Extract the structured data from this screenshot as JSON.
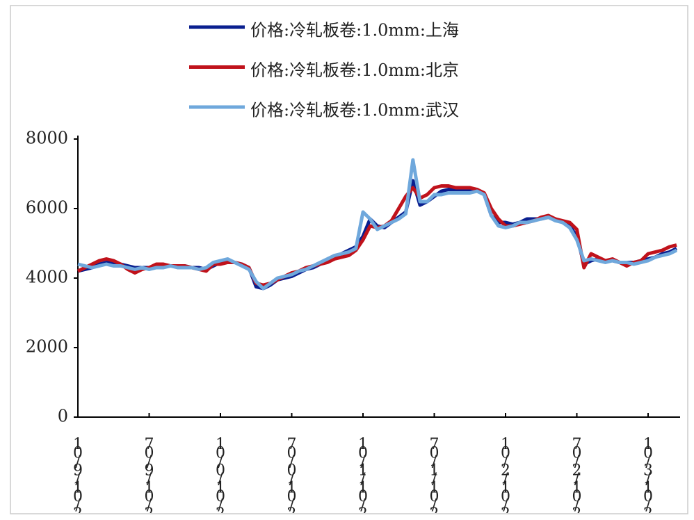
{
  "chart_data": {
    "type": "line",
    "categories": [
      "10/9/10/2",
      null,
      null,
      null,
      null,
      null,
      null,
      null,
      null,
      null,
      "70/9/10/2",
      null,
      null,
      null,
      null,
      null,
      null,
      null,
      null,
      null,
      "10/0/10/2",
      null,
      null,
      null,
      null,
      null,
      null,
      null,
      null,
      null,
      "70/0/10/2",
      null,
      null,
      null,
      null,
      null,
      null,
      null,
      null,
      null,
      "10/1/10/2",
      null,
      null,
      null,
      null,
      null,
      null,
      null,
      null,
      null,
      "70/1/10/2",
      null,
      null,
      null,
      null,
      null,
      null,
      null,
      null,
      null,
      "10/2/10/2",
      null,
      null,
      null,
      null,
      null,
      null,
      null,
      null,
      null,
      "70/2/10/2",
      null,
      null,
      null,
      null,
      null,
      null,
      null,
      null,
      null,
      "10/3/10/2",
      null,
      null,
      null,
      null
    ],
    "series": [
      {
        "name": "价格:冷轧板卷:1.0mm:上海",
        "color": "#0a1f8f",
        "values": [
          4200,
          4250,
          4300,
          4400,
          4450,
          4450,
          4400,
          4350,
          4300,
          4300,
          4300,
          4350,
          4350,
          4350,
          4350,
          4350,
          4300,
          4300,
          4250,
          4350,
          4450,
          4500,
          4450,
          4400,
          4300,
          3750,
          3700,
          3800,
          3950,
          4000,
          4050,
          4150,
          4250,
          4300,
          4400,
          4500,
          4600,
          4700,
          4800,
          4900,
          5200,
          5700,
          5500,
          5450,
          5600,
          5750,
          5900,
          6800,
          6100,
          6200,
          6350,
          6500,
          6550,
          6550,
          6500,
          6500,
          6550,
          6400,
          5800,
          5600,
          5600,
          5550,
          5600,
          5700,
          5700,
          5700,
          5750,
          5700,
          5600,
          5500,
          5200,
          4400,
          4500,
          4550,
          4500,
          4500,
          4450,
          4450,
          4450,
          4500,
          4550,
          4600,
          4700,
          4750,
          4850
        ]
      },
      {
        "name": "价格:冷轧板卷:1.0mm:北京",
        "color": "#c0121b",
        "values": [
          4200,
          4300,
          4400,
          4500,
          4550,
          4500,
          4400,
          4250,
          4150,
          4250,
          4300,
          4400,
          4400,
          4350,
          4350,
          4350,
          4300,
          4250,
          4200,
          4400,
          4400,
          4450,
          4450,
          4400,
          4300,
          3850,
          3800,
          3850,
          3950,
          4050,
          4150,
          4200,
          4300,
          4350,
          4400,
          4450,
          4550,
          4600,
          4650,
          4800,
          5100,
          5500,
          5450,
          5500,
          5650,
          6000,
          6350,
          6600,
          6300,
          6400,
          6600,
          6650,
          6650,
          6600,
          6600,
          6600,
          6550,
          6450,
          6000,
          5700,
          5500,
          5500,
          5550,
          5600,
          5650,
          5750,
          5800,
          5700,
          5650,
          5600,
          5400,
          4300,
          4700,
          4600,
          4500,
          4550,
          4450,
          4350,
          4450,
          4500,
          4700,
          4750,
          4800,
          4900,
          4950
        ]
      },
      {
        "name": "价格:冷轧板卷:1.0mm:武汉",
        "color": "#6fa8dc",
        "values": [
          4400,
          4350,
          4300,
          4350,
          4400,
          4350,
          4350,
          4300,
          4250,
          4300,
          4250,
          4300,
          4300,
          4350,
          4300,
          4300,
          4300,
          4250,
          4300,
          4450,
          4500,
          4550,
          4450,
          4350,
          4250,
          3900,
          3700,
          3850,
          4000,
          4050,
          4100,
          4200,
          4250,
          4350,
          4450,
          4550,
          4650,
          4700,
          4750,
          4850,
          5900,
          5700,
          5400,
          5500,
          5600,
          5700,
          5850,
          7400,
          6200,
          6200,
          6400,
          6400,
          6450,
          6450,
          6450,
          6450,
          6500,
          6400,
          5800,
          5500,
          5450,
          5500,
          5600,
          5600,
          5650,
          5700,
          5750,
          5650,
          5600,
          5450,
          5100,
          4500,
          4550,
          4500,
          4450,
          4500,
          4450,
          4450,
          4400,
          4450,
          4500,
          4600,
          4650,
          4700,
          4800
        ]
      }
    ],
    "ylim": [
      0,
      8000
    ],
    "yticks": [
      0,
      2000,
      4000,
      6000,
      8000
    ],
    "legend": "top"
  }
}
